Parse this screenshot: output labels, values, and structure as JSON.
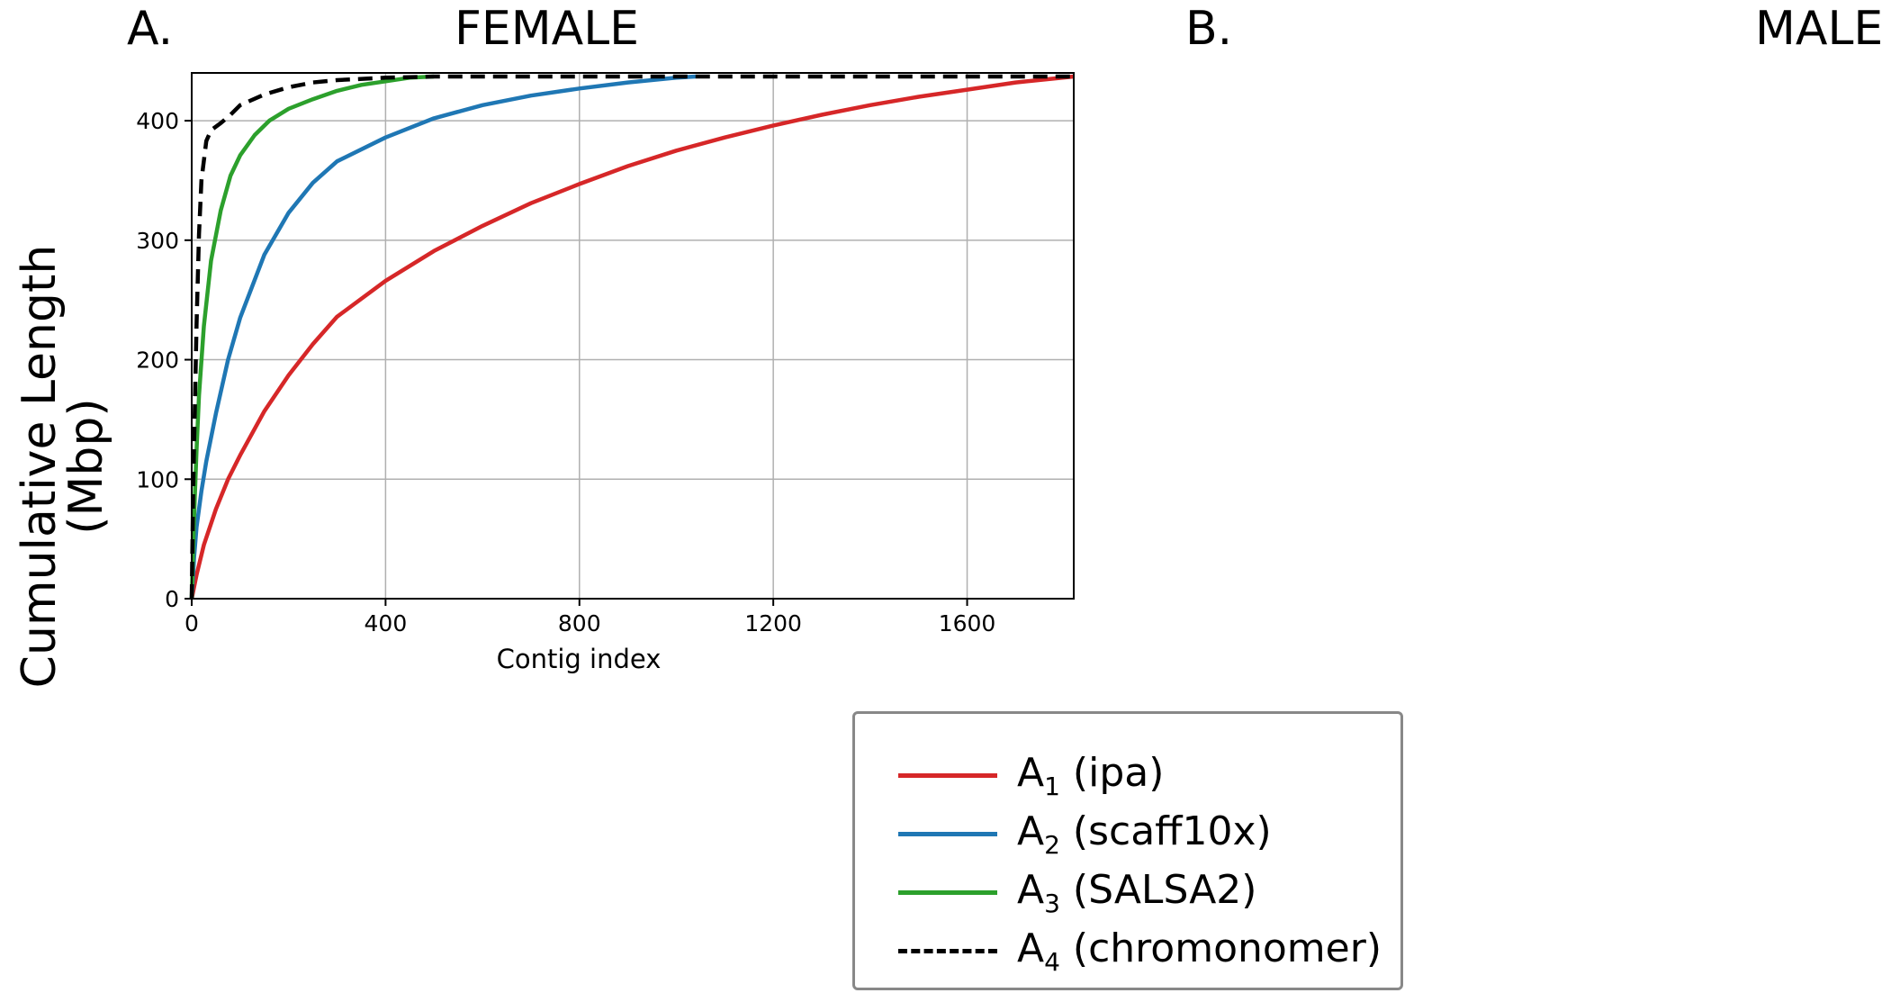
{
  "panels": {
    "a_label": "A.",
    "a_title": "FEMALE",
    "b_label": "B.",
    "b_title": "MALE"
  },
  "y_axis_label": "Cumulative Length (Mbp)",
  "chart_data": {
    "type": "line",
    "title": "FEMALE",
    "xlabel": "Contig index",
    "ylabel": "Cumulative Length (Mbp)",
    "xlim": [
      0,
      1820
    ],
    "ylim": [
      0,
      440
    ],
    "xticks": [
      0,
      400,
      800,
      1200,
      1600
    ],
    "yticks": [
      0,
      100,
      200,
      300,
      400
    ],
    "grid": true,
    "legend_position": "below-right",
    "series": [
      {
        "name": "A1 (ipa)",
        "base": "A",
        "sub": "1",
        "suffix": " (ipa)",
        "color": "#d62728",
        "dash": "solid",
        "x": [
          0,
          10,
          25,
          50,
          75,
          100,
          150,
          200,
          250,
          300,
          400,
          500,
          600,
          700,
          800,
          900,
          1000,
          1100,
          1200,
          1300,
          1400,
          1500,
          1600,
          1700,
          1820
        ],
        "y": [
          0,
          20,
          45,
          75,
          100,
          120,
          157,
          187,
          213,
          236,
          266,
          291,
          312,
          331,
          347,
          362,
          375,
          386,
          396,
          405,
          413,
          420,
          426,
          432,
          437
        ]
      },
      {
        "name": "A2 (scaff10x)",
        "base": "A",
        "sub": "2",
        "suffix": " (scaff10x)",
        "color": "#1f77b4",
        "dash": "solid",
        "x": [
          0,
          5,
          10,
          20,
          30,
          50,
          75,
          100,
          150,
          200,
          250,
          300,
          400,
          500,
          600,
          700,
          800,
          900,
          1000,
          1040
        ],
        "y": [
          0,
          35,
          60,
          90,
          115,
          155,
          200,
          235,
          288,
          323,
          348,
          366,
          386,
          402,
          413,
          421,
          427,
          432,
          436,
          437
        ]
      },
      {
        "name": "A3 (SALSA2)",
        "base": "A",
        "sub": "3",
        "suffix": " (SALSA2)",
        "color": "#2ca02c",
        "dash": "solid",
        "x": [
          0,
          5,
          10,
          15,
          25,
          40,
          60,
          80,
          100,
          130,
          160,
          200,
          250,
          300,
          350,
          400,
          450,
          500
        ],
        "y": [
          0,
          70,
          125,
          170,
          228,
          283,
          325,
          354,
          371,
          388,
          400,
          410,
          418,
          425,
          430,
          433,
          436,
          437
        ]
      },
      {
        "name": "A4 (chromonomer)",
        "base": "A",
        "sub": "4",
        "suffix": " (chromonomer)",
        "color": "#000000",
        "dash": "dashed",
        "x": [
          0,
          3,
          6,
          10,
          15,
          20,
          30,
          40,
          60,
          80,
          100,
          150,
          200,
          250,
          300,
          400,
          500,
          700,
          1000,
          1400,
          1820
        ],
        "y": [
          0,
          90,
          150,
          230,
          305,
          350,
          383,
          392,
          398,
          405,
          413,
          422,
          428,
          432,
          434,
          436,
          437,
          437,
          437,
          437,
          437
        ]
      }
    ]
  }
}
